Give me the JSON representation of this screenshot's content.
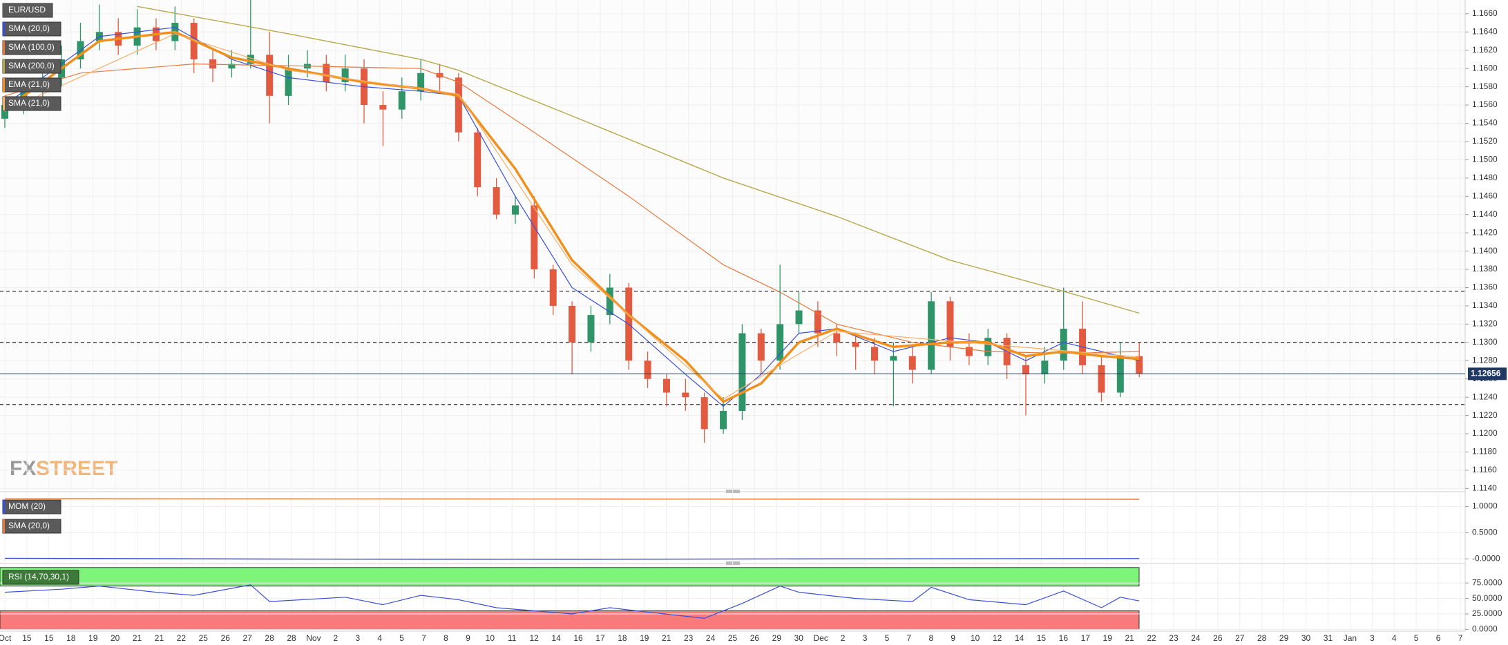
{
  "chart_data": [
    {
      "type": "candlestick",
      "symbol": "EUR/USD",
      "up_color": "#2f9468",
      "down_color": "#e25a3f",
      "grid": true,
      "candles": {
        "open": [
          1.1545,
          1.156,
          1.1575,
          1.159,
          1.161,
          1.163,
          1.164,
          1.1625,
          1.1645,
          1.163,
          1.165,
          1.161,
          1.16,
          1.1605,
          1.1615,
          1.157,
          1.16,
          1.1605,
          1.1585,
          1.16,
          1.156,
          1.1555,
          1.1575,
          1.1595,
          1.159,
          1.153,
          1.147,
          1.144,
          1.145,
          1.138,
          1.134,
          1.13,
          1.133,
          1.136,
          1.128,
          1.126,
          1.1245,
          1.124,
          1.1205,
          1.1225,
          1.131,
          1.128,
          1.132,
          1.1335,
          1.131,
          1.13,
          1.1295,
          1.128,
          1.1285,
          1.127,
          1.1345,
          1.1295,
          1.1285,
          1.1305,
          1.1275,
          1.1265,
          1.128,
          1.1315,
          1.1275,
          1.1245,
          1.1285
        ],
        "high": [
          1.157,
          1.159,
          1.1605,
          1.1625,
          1.165,
          1.167,
          1.1655,
          1.1665,
          1.1655,
          1.1668,
          1.1655,
          1.162,
          1.162,
          1.169,
          1.164,
          1.1615,
          1.162,
          1.1615,
          1.1615,
          1.161,
          1.1575,
          1.159,
          1.161,
          1.1605,
          1.1595,
          1.1535,
          1.148,
          1.146,
          1.146,
          1.1385,
          1.1345,
          1.134,
          1.1375,
          1.1365,
          1.129,
          1.1265,
          1.126,
          1.1245,
          1.124,
          1.132,
          1.1315,
          1.1385,
          1.1355,
          1.1345,
          1.132,
          1.131,
          1.1305,
          1.13,
          1.1295,
          1.1355,
          1.135,
          1.131,
          1.1315,
          1.131,
          1.1285,
          1.1295,
          1.136,
          1.1345,
          1.1285,
          1.13,
          1.13
        ],
        "low": [
          1.1535,
          1.155,
          1.1565,
          1.158,
          1.16,
          1.162,
          1.1615,
          1.1615,
          1.162,
          1.162,
          1.1595,
          1.1585,
          1.159,
          1.16,
          1.154,
          1.156,
          1.159,
          1.1575,
          1.1575,
          1.154,
          1.1515,
          1.1545,
          1.1565,
          1.1575,
          1.152,
          1.146,
          1.1435,
          1.143,
          1.137,
          1.133,
          1.1265,
          1.129,
          1.132,
          1.127,
          1.125,
          1.123,
          1.1225,
          1.119,
          1.12,
          1.1215,
          1.1265,
          1.127,
          1.131,
          1.1295,
          1.1285,
          1.127,
          1.1265,
          1.123,
          1.1255,
          1.1265,
          1.128,
          1.1275,
          1.1275,
          1.126,
          1.122,
          1.1255,
          1.127,
          1.1265,
          1.1235,
          1.124,
          1.1262
        ],
        "close": [
          1.156,
          1.1575,
          1.159,
          1.161,
          1.163,
          1.164,
          1.1625,
          1.1645,
          1.163,
          1.165,
          1.161,
          1.16,
          1.1605,
          1.1615,
          1.157,
          1.16,
          1.1605,
          1.1585,
          1.16,
          1.156,
          1.1555,
          1.1575,
          1.1595,
          1.159,
          1.153,
          1.147,
          1.144,
          1.145,
          1.138,
          1.134,
          1.13,
          1.133,
          1.136,
          1.128,
          1.126,
          1.1245,
          1.124,
          1.1205,
          1.1225,
          1.131,
          1.128,
          1.132,
          1.1335,
          1.131,
          1.13,
          1.1295,
          1.128,
          1.1285,
          1.127,
          1.1345,
          1.1295,
          1.1285,
          1.1305,
          1.1275,
          1.1265,
          1.128,
          1.1315,
          1.1275,
          1.1245,
          1.1285,
          1.1266
        ]
      },
      "series": [
        {
          "name": "SMA (20,0)",
          "color": "#3a4fd8",
          "width": 1.2,
          "x": [
            0,
            5,
            9,
            12,
            15,
            19,
            22,
            24,
            27,
            30,
            33,
            36,
            38,
            40,
            42,
            44,
            47,
            50,
            52,
            54,
            56,
            58,
            60
          ],
          "values": [
            1.156,
            1.1635,
            1.1645,
            1.161,
            1.159,
            1.158,
            1.1575,
            1.157,
            1.146,
            1.136,
            1.132,
            1.1265,
            1.123,
            1.1265,
            1.131,
            1.1315,
            1.129,
            1.1305,
            1.13,
            1.128,
            1.13,
            1.129,
            1.128
          ]
        },
        {
          "name": "SMA (100,0)",
          "color": "#e8773a",
          "width": 1.2,
          "x": [
            0,
            4,
            10,
            15,
            22,
            24,
            28,
            33,
            38,
            41,
            44,
            48,
            52,
            56,
            60
          ],
          "values": [
            1.157,
            1.1595,
            1.1605,
            1.1603,
            1.16,
            1.1585,
            1.153,
            1.146,
            1.1385,
            1.1355,
            1.132,
            1.13,
            1.129,
            1.1288,
            1.129
          ]
        },
        {
          "name": "SMA (200,0)",
          "color": "#b5a84a",
          "width": 1.4,
          "x": [
            7,
            15,
            22,
            24,
            30,
            38,
            44,
            50,
            56,
            60
          ],
          "values": [
            1.1668,
            1.1638,
            1.161,
            1.1598,
            1.1548,
            1.148,
            1.1438,
            1.139,
            1.1356,
            1.1332
          ]
        },
        {
          "name": "EMA (21,0)",
          "color": "#f0901e",
          "width": 3.5,
          "x": [
            0,
            5,
            9,
            12,
            15,
            19,
            22,
            24,
            27,
            30,
            33,
            36,
            38,
            40,
            42,
            44,
            47,
            50,
            52,
            54,
            56,
            58,
            60
          ],
          "values": [
            1.1555,
            1.163,
            1.164,
            1.1612,
            1.16,
            1.1585,
            1.1578,
            1.157,
            1.149,
            1.139,
            1.133,
            1.128,
            1.1235,
            1.1255,
            1.13,
            1.1315,
            1.1295,
            1.13,
            1.13,
            1.1285,
            1.129,
            1.1285,
            1.1282
          ]
        },
        {
          "name": "SMA (21,0)",
          "color": "#f5b06a",
          "width": 1.2,
          "x": [
            0,
            9,
            15,
            24,
            30,
            38,
            44,
            52,
            60
          ],
          "values": [
            1.1553,
            1.1638,
            1.1598,
            1.1572,
            1.1385,
            1.1238,
            1.1312,
            1.1298,
            1.1284
          ]
        }
      ],
      "levels": [
        1.1356,
        1.13,
        1.1232
      ],
      "last_price": 1.12656,
      "ylim": [
        1.1138,
        1.1675
      ],
      "yticks": [
        {
          "value": 1.166,
          "label": "1.1660"
        },
        {
          "value": 1.164,
          "label": "1.1640"
        },
        {
          "value": 1.162,
          "label": "1.1620"
        },
        {
          "value": 1.16,
          "label": "1.1600"
        },
        {
          "value": 1.158,
          "label": "1.1580"
        },
        {
          "value": 1.156,
          "label": "1.1560"
        },
        {
          "value": 1.154,
          "label": "1.1540"
        },
        {
          "value": 1.152,
          "label": "1.1520"
        },
        {
          "value": 1.15,
          "label": "1.1500"
        },
        {
          "value": 1.148,
          "label": "1.1480"
        },
        {
          "value": 1.146,
          "label": "1.1460"
        },
        {
          "value": 1.144,
          "label": "1.1440"
        },
        {
          "value": 1.142,
          "label": "1.1420"
        },
        {
          "value": 1.14,
          "label": "1.1400"
        },
        {
          "value": 1.138,
          "label": "1.1380"
        },
        {
          "value": 1.136,
          "label": "1.1360"
        },
        {
          "value": 1.134,
          "label": "1.1340"
        },
        {
          "value": 1.132,
          "label": "1.1320"
        },
        {
          "value": 1.13,
          "label": "1.1300"
        },
        {
          "value": 1.128,
          "label": "1.1280"
        },
        {
          "value": 1.126,
          "label": "1.1260"
        },
        {
          "value": 1.124,
          "label": "1.1240"
        },
        {
          "value": 1.122,
          "label": "1.1220"
        },
        {
          "value": 1.12,
          "label": "1.1200"
        },
        {
          "value": 1.118,
          "label": "1.1180"
        },
        {
          "value": 1.116,
          "label": "1.1160"
        },
        {
          "value": 1.114,
          "label": "1.1140"
        }
      ],
      "watermark": {
        "left": "FX",
        "right": "STREET"
      },
      "x_labels": [
        "Oct",
        "15",
        "15",
        "18",
        "19",
        "20",
        "21",
        "21",
        "22",
        "25",
        "26",
        "27",
        "28",
        "28",
        "Nov",
        "2",
        "3",
        "4",
        "5",
        "7",
        "8",
        "9",
        "10",
        "11",
        "12",
        "14",
        "16",
        "17",
        "18",
        "19",
        "21",
        "23",
        "24",
        "25",
        "26",
        "29",
        "30",
        "Dec",
        "2",
        "3",
        "5",
        "7",
        "8",
        "9",
        "10",
        "12",
        "14",
        "15",
        "16",
        "17",
        "19",
        "21",
        "22",
        "23",
        "24",
        "26",
        "27",
        "28",
        "29",
        "30",
        "31",
        "Jan",
        "3",
        "4",
        "5",
        "6",
        "7"
      ]
    },
    {
      "type": "line",
      "series": [
        {
          "name": "MOM (20)",
          "color": "#3a4fd8",
          "x": [
            0,
            15,
            30,
            45,
            60
          ],
          "values": [
            0.01,
            -0.005,
            -0.01,
            0.0,
            0.005
          ]
        },
        {
          "name": "SMA (20,0)",
          "color": "#e8773a",
          "x": [
            0,
            30,
            60
          ],
          "values": [
            1.15,
            1.145,
            1.14
          ]
        }
      ],
      "ylim": [
        -0.04,
        1.19
      ],
      "yticks": [
        {
          "value": 1.0,
          "label": "1.0000"
        },
        {
          "value": 0.5,
          "label": "0.5000"
        },
        {
          "value": 0.0,
          "label": "-0.0000"
        }
      ]
    },
    {
      "type": "line",
      "name": "RSI (14,70,30,1)",
      "color": "#3a4fd8",
      "overbought": 70,
      "oversold": 30,
      "zone_top": 100,
      "zone_bottom": 0,
      "x": [
        0,
        3,
        5,
        8,
        10,
        13,
        14,
        18,
        20,
        22,
        24,
        26,
        28,
        30,
        32,
        34,
        37,
        39,
        41,
        42,
        45,
        48,
        49,
        51,
        54,
        56,
        58,
        59,
        60
      ],
      "values": [
        60,
        65,
        70,
        60,
        55,
        72,
        45,
        52,
        40,
        55,
        48,
        35,
        30,
        25,
        35,
        28,
        18,
        42,
        70,
        60,
        50,
        45,
        68,
        48,
        40,
        62,
        35,
        52,
        46
      ],
      "ylim": [
        0,
        100
      ],
      "yticks": [
        {
          "value": 75,
          "label": "75.0000"
        },
        {
          "value": 50,
          "label": "50.0000"
        },
        {
          "value": 25,
          "label": "25.0000"
        },
        {
          "value": 0,
          "label": "0.0000"
        }
      ]
    }
  ]
}
